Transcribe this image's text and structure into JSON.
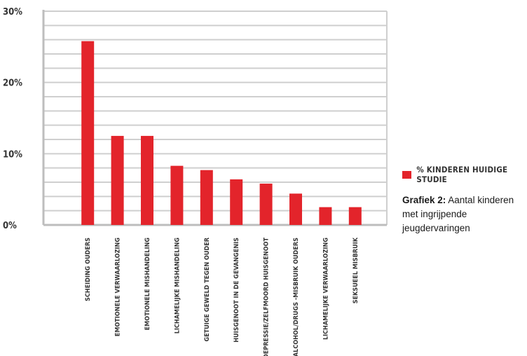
{
  "chart_data": {
    "type": "bar",
    "categories": [
      "SCHEIDING OUDERS",
      "EMOTIONELE VERWAARLOZING",
      "EMOTIONELE MISHANDELING",
      "LICHAMELIJKE MISHANDELING",
      "GETUIGE GEWELD TEGEN OUDER",
      "HUISGENOOT IN DE GEVANGENIS",
      "DEPRESSIE/ZELFMOORD HUISGENOOT",
      "ALCOHOL/DRUGS -MISBRUIK OUDERS",
      "LICHAMELIJKE VERWAARLOZING",
      "SEKSUEEL MISBRUIK"
    ],
    "series": [
      {
        "name": "% KINDEREN HUIDIGE STUDIE",
        "values": [
          25.8,
          12.5,
          12.5,
          8.3,
          7.7,
          6.4,
          5.8,
          4.4,
          2.5,
          2.5
        ]
      }
    ],
    "yticks": [
      0,
      10,
      20,
      30
    ],
    "ytick_labels": [
      "0%",
      "10%",
      "20%",
      "30%"
    ],
    "ylim": [
      0,
      30
    ],
    "grid": true,
    "legend_position": "right",
    "bar_color": "#e3242b",
    "grid_color": "#cfcfcf",
    "axis_color": "#bdbdbd"
  },
  "caption": {
    "bold": "Grafiek 2:",
    "text": " Aantal kinderen met ingrijpende jeugdervaringen"
  }
}
